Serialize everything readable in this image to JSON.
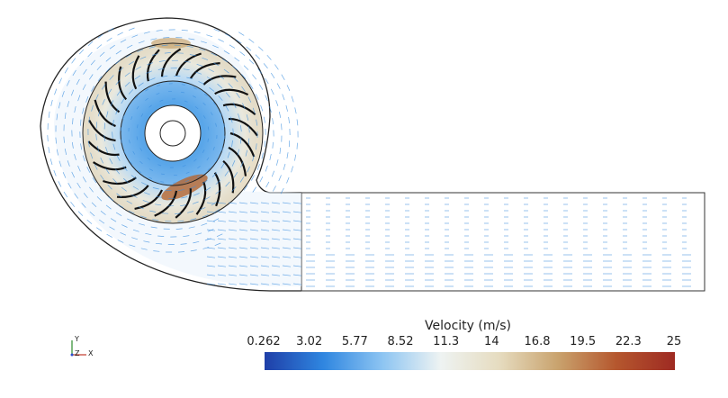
{
  "legend": {
    "title": "Velocity (m/s)",
    "ticks": [
      "0.262",
      "3.02",
      "5.77",
      "8.52",
      "11.3",
      "14",
      "16.8",
      "19.5",
      "22.3",
      "25"
    ],
    "range": [
      0.262,
      25
    ],
    "colors": [
      "#1f3fa8",
      "#2f86e0",
      "#8cc4f2",
      "#eef3f2",
      "#e6dcc0",
      "#c9a36e",
      "#b5572e",
      "#9e2a22"
    ]
  },
  "axes_triad": {
    "y_label": "Y",
    "z_label": "Z",
    "x_label": "X"
  },
  "scene": {
    "impeller_blade_count": 25,
    "vector_color": "#3b8fe0"
  }
}
